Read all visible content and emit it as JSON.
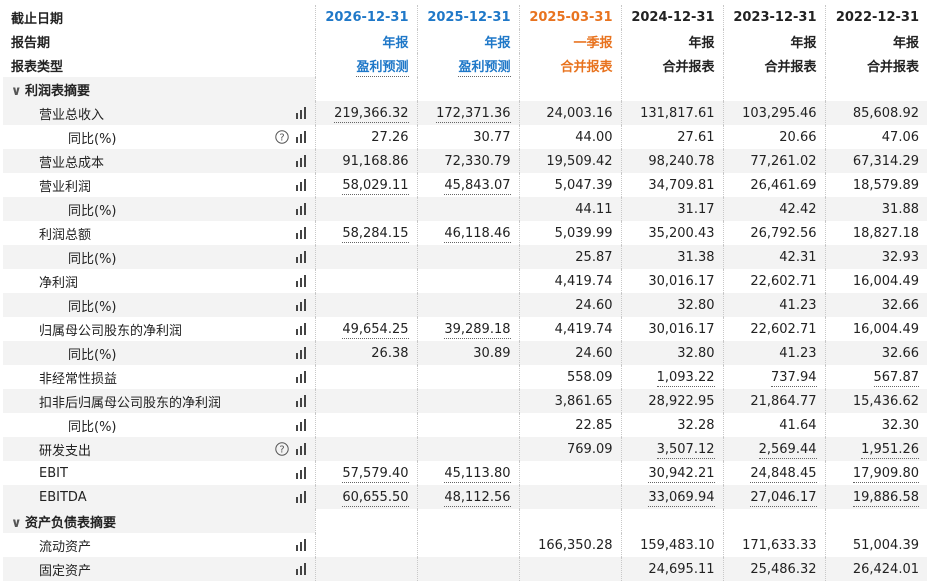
{
  "header": {
    "labels": [
      "截止日期",
      "报告期",
      "报表类型"
    ],
    "columns": [
      {
        "date": "2026-12-31",
        "period": "年报",
        "type": "盈利预测",
        "color": "#1f78c8"
      },
      {
        "date": "2025-12-31",
        "period": "年报",
        "type": "盈利预测",
        "color": "#1f78c8"
      },
      {
        "date": "2025-03-31",
        "period": "一季报",
        "type": "合并报表",
        "color": "#e8731f"
      },
      {
        "date": "2024-12-31",
        "period": "年报",
        "type": "合并报表",
        "color": "#222222"
      },
      {
        "date": "2023-12-31",
        "period": "年报",
        "type": "合并报表",
        "color": "#222222"
      },
      {
        "date": "2022-12-31",
        "period": "年报",
        "type": "合并报表",
        "color": "#222222"
      }
    ]
  },
  "rows": [
    {
      "section": true,
      "label": "利润表摘要"
    },
    {
      "label": "营业总收入",
      "level": 1,
      "values": [
        "219,366.32",
        "172,371.36",
        "24,003.16",
        "131,817.61",
        "103,295.46",
        "85,608.92"
      ],
      "underlined": [
        0,
        1
      ]
    },
    {
      "label": "同比(%)",
      "level": 2,
      "help": true,
      "values": [
        "27.26",
        "30.77",
        "44.00",
        "27.61",
        "20.66",
        "47.06"
      ]
    },
    {
      "label": "营业总成本",
      "level": 1,
      "values": [
        "91,168.86",
        "72,330.79",
        "19,509.42",
        "98,240.78",
        "77,261.02",
        "67,314.29"
      ]
    },
    {
      "label": "营业利润",
      "level": 1,
      "values": [
        "58,029.11",
        "45,843.07",
        "5,047.39",
        "34,709.81",
        "26,461.69",
        "18,579.89"
      ],
      "underlined": [
        0,
        1
      ]
    },
    {
      "label": "同比(%)",
      "level": 2,
      "values": [
        null,
        null,
        "44.11",
        "31.17",
        "42.42",
        "31.88"
      ]
    },
    {
      "label": "利润总额",
      "level": 1,
      "values": [
        "58,284.15",
        "46,118.46",
        "5,039.99",
        "35,200.43",
        "26,792.56",
        "18,827.18"
      ],
      "underlined": [
        0,
        1
      ]
    },
    {
      "label": "同比(%)",
      "level": 2,
      "values": [
        null,
        null,
        "25.87",
        "31.38",
        "42.31",
        "32.93"
      ]
    },
    {
      "label": "净利润",
      "level": 1,
      "values": [
        null,
        null,
        "4,419.74",
        "30,016.17",
        "22,602.71",
        "16,004.49"
      ]
    },
    {
      "label": "同比(%)",
      "level": 2,
      "values": [
        null,
        null,
        "24.60",
        "32.80",
        "41.23",
        "32.66"
      ]
    },
    {
      "label": "归属母公司股东的净利润",
      "level": 1,
      "values": [
        "49,654.25",
        "39,289.18",
        "4,419.74",
        "30,016.17",
        "22,602.71",
        "16,004.49"
      ],
      "underlined": [
        0,
        1
      ]
    },
    {
      "label": "同比(%)",
      "level": 2,
      "values": [
        "26.38",
        "30.89",
        "24.60",
        "32.80",
        "41.23",
        "32.66"
      ]
    },
    {
      "label": "非经常性损益",
      "level": 1,
      "values": [
        null,
        null,
        "558.09",
        "1,093.22",
        "737.94",
        "567.87"
      ],
      "underlined": [
        3,
        4,
        5
      ]
    },
    {
      "label": "扣非后归属母公司股东的净利润",
      "level": 1,
      "values": [
        null,
        null,
        "3,861.65",
        "28,922.95",
        "21,864.77",
        "15,436.62"
      ]
    },
    {
      "label": "同比(%)",
      "level": 2,
      "values": [
        null,
        null,
        "22.85",
        "32.28",
        "41.64",
        "32.30"
      ]
    },
    {
      "label": "研发支出",
      "level": 1,
      "help": true,
      "values": [
        null,
        null,
        "769.09",
        "3,507.12",
        "2,569.44",
        "1,951.26"
      ],
      "underlined": [
        3,
        4,
        5
      ]
    },
    {
      "label": "EBIT",
      "level": 1,
      "values": [
        "57,579.40",
        "45,113.80",
        null,
        "30,942.21",
        "24,848.45",
        "17,909.80"
      ],
      "underlined": [
        0,
        1,
        3,
        4,
        5
      ]
    },
    {
      "label": "EBITDA",
      "level": 1,
      "values": [
        "60,655.50",
        "48,112.56",
        null,
        "33,069.94",
        "27,046.17",
        "19,886.58"
      ],
      "underlined": [
        0,
        1,
        3,
        4,
        5
      ]
    },
    {
      "section": true,
      "label": "资产负债表摘要"
    },
    {
      "label": "流动资产",
      "level": 1,
      "values": [
        null,
        null,
        "166,350.28",
        "159,483.10",
        "171,633.33",
        "51,004.39"
      ]
    },
    {
      "label": "固定资产",
      "level": 1,
      "values": [
        null,
        null,
        null,
        "24,695.11",
        "25,486.32",
        "26,424.01"
      ]
    }
  ]
}
